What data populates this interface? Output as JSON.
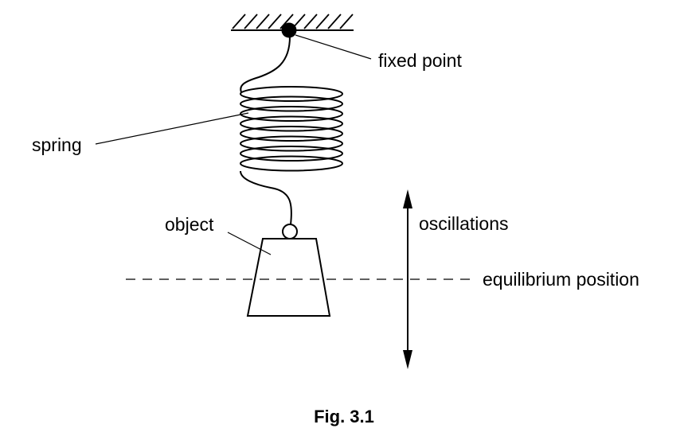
{
  "labels": {
    "fixed_point": "fixed point",
    "spring": "spring",
    "object": "object",
    "oscillations": "oscillations",
    "equilibrium_position": "equilibrium position"
  },
  "caption": "Fig. 3.1",
  "colors": {
    "ink": "#000000",
    "background": "#ffffff"
  }
}
